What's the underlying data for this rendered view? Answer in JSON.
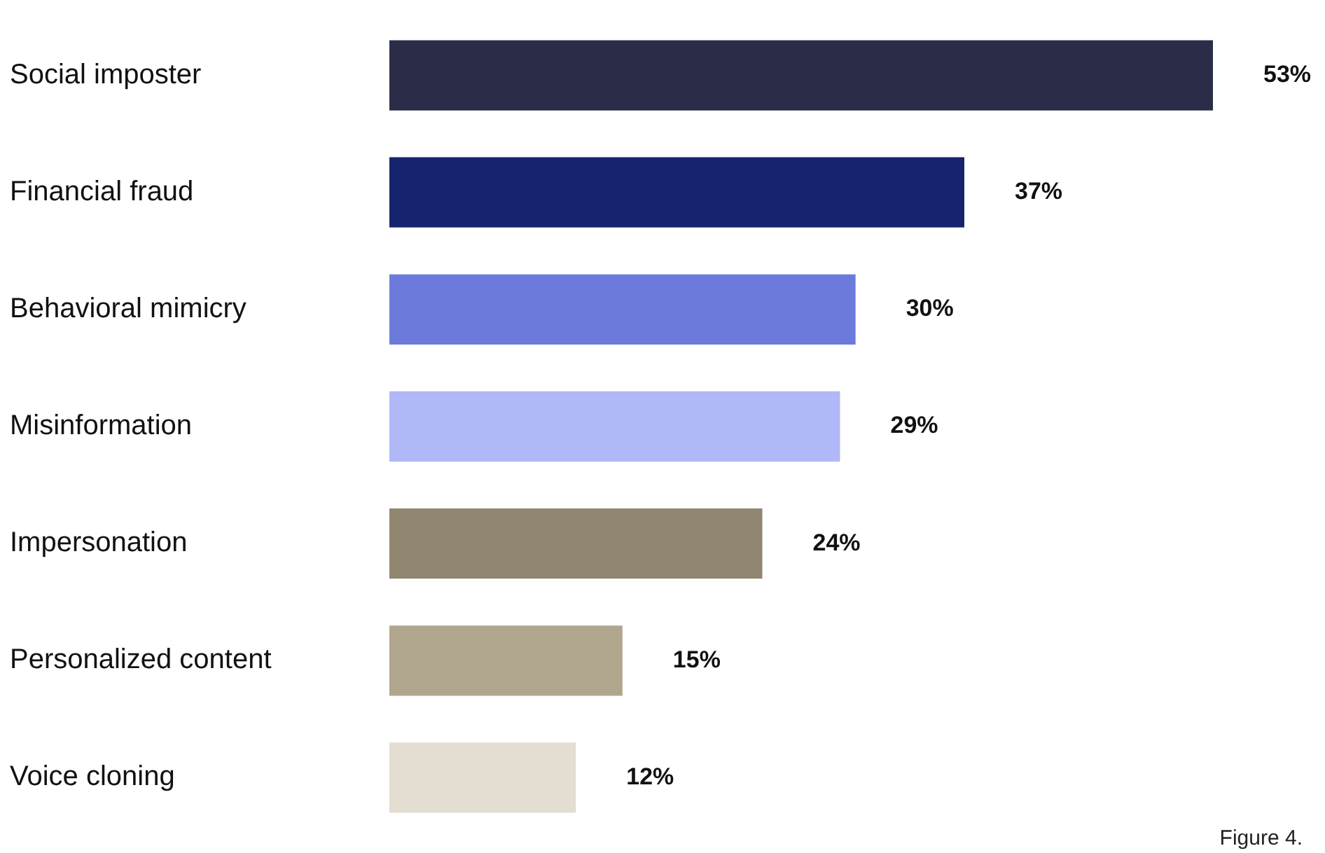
{
  "chart_data": {
    "type": "bar",
    "orientation": "horizontal",
    "categories": [
      "Social imposter",
      "Financial fraud",
      "Behavioral mimicry",
      "Misinformation",
      "Impersonation",
      "Personalized content",
      "Voice cloning"
    ],
    "values": [
      53,
      37,
      30,
      29,
      24,
      15,
      12
    ],
    "value_labels": [
      "53%",
      "37%",
      "30%",
      "29%",
      "24%",
      "15%",
      "12%"
    ],
    "colors": [
      "#2b2d48",
      "#16236e",
      "#6c7bdb",
      "#b0b8f7",
      "#918670",
      "#b0a68e",
      "#e3ddd2"
    ],
    "legend": false,
    "annotations": [
      "Figure 4."
    ]
  }
}
